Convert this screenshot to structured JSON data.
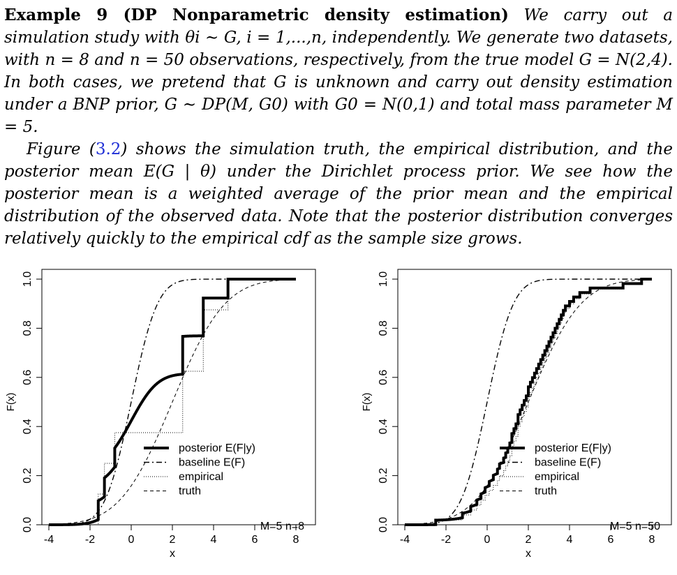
{
  "text": {
    "example_title": "Example 9 (DP Nonparametric density estimation)",
    "paragraph1_body": "We carry out a simulation study with θi ∼ G, i = 1,...,n, independently. We generate two datasets, with n = 8 and n = 50 observations, respectively, from the true model G = N(2,4). In both cases, we pretend that G is unknown and carry out density estimation under a BNP prior, G ∼ DP(M, G0) with G0 = N(0,1) and total mass parameter M = 5.",
    "paragraph2_start": "Figure (",
    "figure_ref": "3.2",
    "paragraph2_end": ") shows the simulation truth, the empirical distribution, and the posterior mean E(G | θ) under the Dirichlet process prior. We see how the posterior mean is a weighted average of the prior mean and the empirical distribution of the observed data. Note that the posterior distribution converges relatively quickly to the empirical cdf as the sample size grows."
  },
  "chart_data": [
    {
      "type": "line",
      "xlabel": "x",
      "ylabel": "F(x)",
      "xlim": [
        -4,
        8
      ],
      "ylim": [
        0,
        1
      ],
      "x_ticks": [
        "-4",
        "-2",
        "0",
        "2",
        "4",
        "6",
        "8"
      ],
      "y_ticks": [
        "0.0",
        "0.2",
        "0.4",
        "0.6",
        "0.8",
        "1.0"
      ],
      "legend_position": "bottom-right",
      "annotation": "M=5  n=8",
      "M": 5,
      "n": 8,
      "G0": {
        "mean": 0,
        "variance": 1
      },
      "truth": {
        "mean": 2,
        "variance": 4
      },
      "observations": [
        -1.6,
        -1.3,
        -0.8,
        2.5,
        2.5,
        3.5,
        3.5,
        4.7
      ],
      "series": [
        {
          "name": "posterior E(F|y)",
          "style": "solid-thick"
        },
        {
          "name": "baseline E(F)",
          "style": "dashdot"
        },
        {
          "name": "empirical",
          "style": "dotted"
        },
        {
          "name": "truth",
          "style": "dashed"
        }
      ]
    },
    {
      "type": "line",
      "xlabel": "x",
      "ylabel": "F(x)",
      "xlim": [
        -4,
        8
      ],
      "ylim": [
        0,
        1
      ],
      "x_ticks": [
        "-4",
        "-2",
        "0",
        "2",
        "4",
        "6",
        "8"
      ],
      "y_ticks": [
        "0.0",
        "0.2",
        "0.4",
        "0.6",
        "0.8",
        "1.0"
      ],
      "legend_position": "bottom-right",
      "annotation": "M=5  n=50",
      "M": 5,
      "n": 50,
      "G0": {
        "mean": 0,
        "variance": 1
      },
      "truth": {
        "mean": 2,
        "variance": 4
      },
      "observations": [
        -2.5,
        -1.2,
        -0.8,
        -0.5,
        -0.3,
        -0.1,
        0.1,
        0.3,
        0.5,
        0.6,
        0.8,
        0.9,
        1.0,
        1.1,
        1.2,
        1.2,
        1.3,
        1.4,
        1.5,
        1.5,
        1.6,
        1.7,
        1.8,
        1.9,
        2.0,
        2.0,
        2.1,
        2.2,
        2.3,
        2.4,
        2.5,
        2.6,
        2.7,
        2.8,
        2.9,
        3.0,
        3.1,
        3.2,
        3.3,
        3.4,
        3.5,
        3.6,
        3.7,
        3.8,
        4.0,
        4.2,
        4.5,
        5.0,
        6.6,
        7.5
      ],
      "series": [
        {
          "name": "posterior E(F|y)",
          "style": "solid-thick"
        },
        {
          "name": "baseline E(F)",
          "style": "dashdot"
        },
        {
          "name": "empirical",
          "style": "dotted"
        },
        {
          "name": "truth",
          "style": "dashed"
        }
      ]
    }
  ]
}
